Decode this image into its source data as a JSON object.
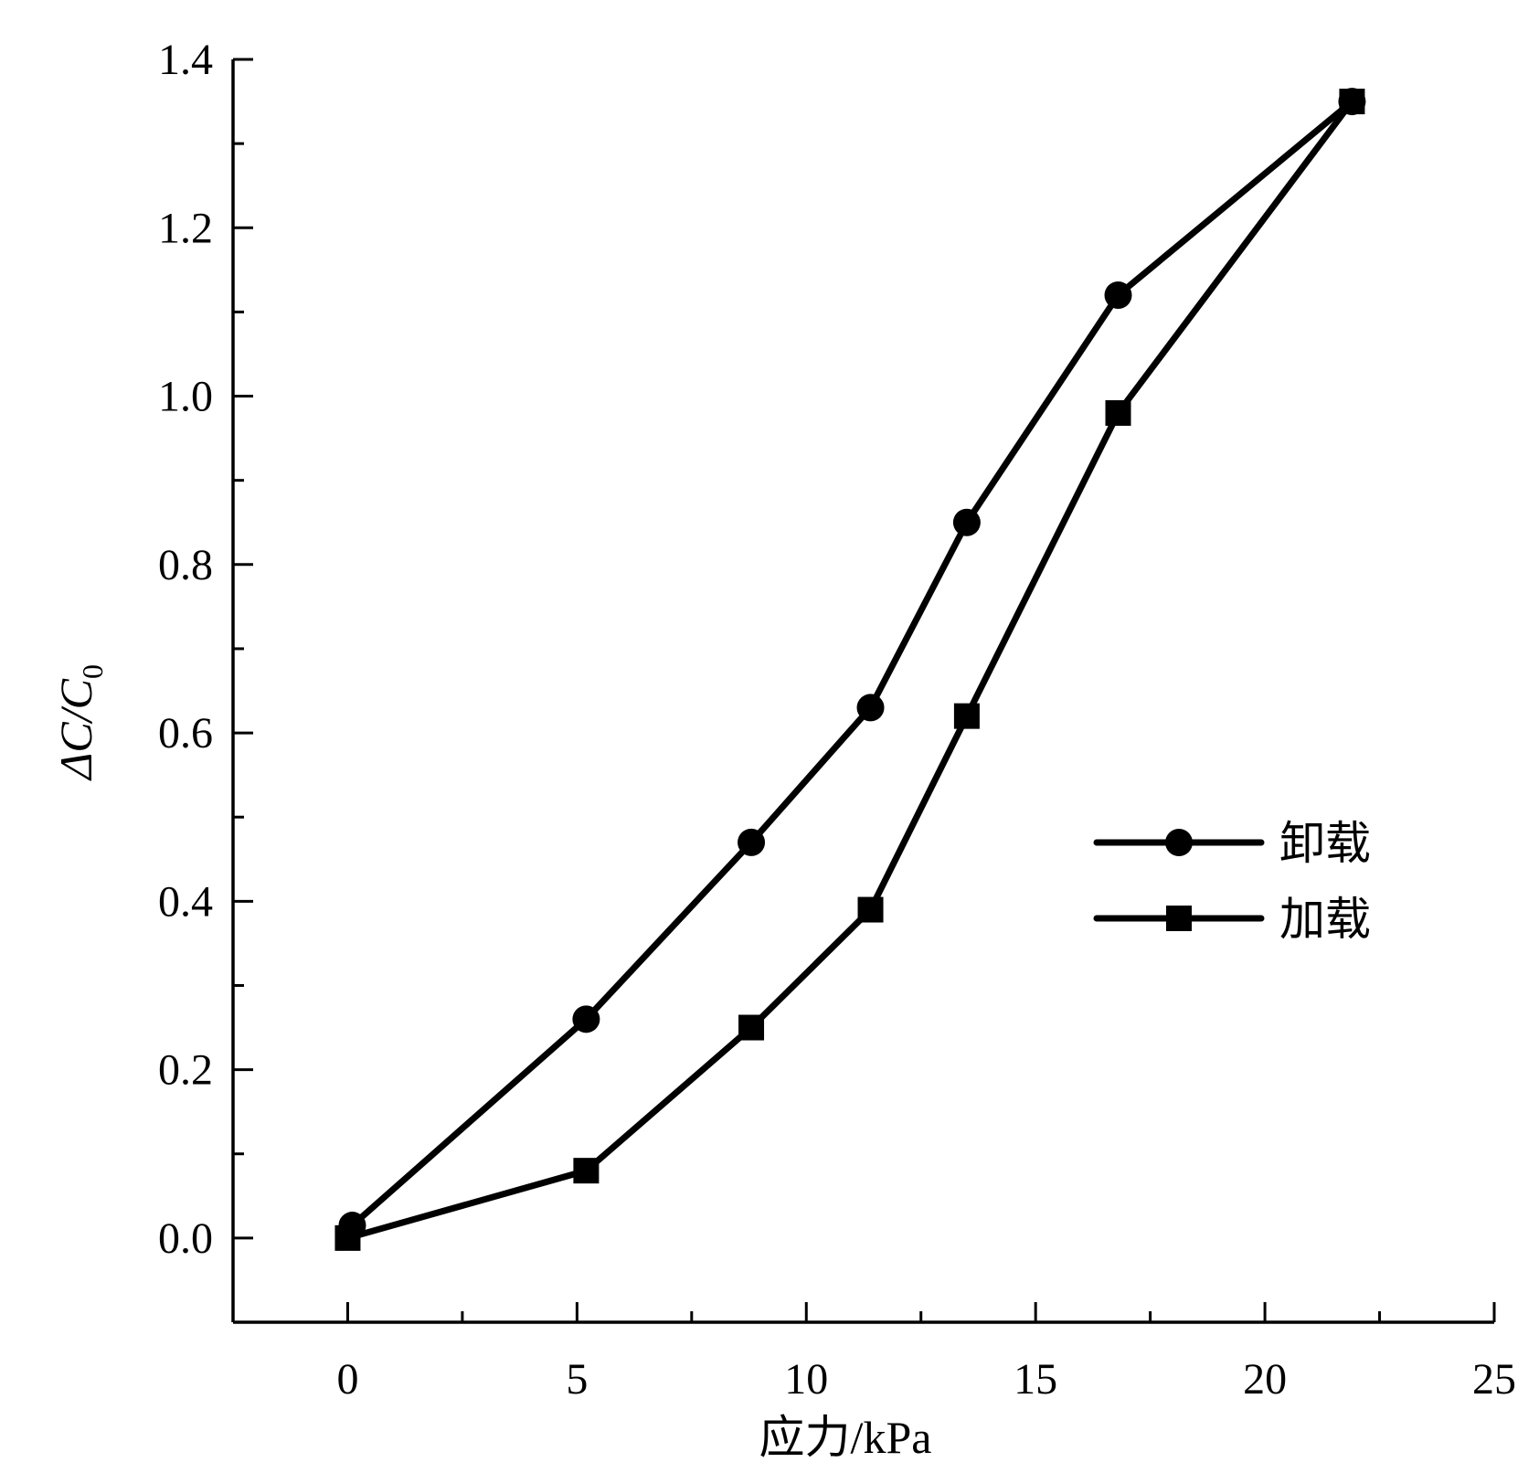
{
  "chart_data": {
    "type": "line",
    "xlabel": "应力/kPa",
    "ylabel_main": "ΔC/C",
    "ylabel_sub": "0",
    "xlim": [
      -2.5,
      25
    ],
    "ylim": [
      -0.1,
      1.4
    ],
    "x_ticks": [
      0,
      5,
      10,
      15,
      20,
      25
    ],
    "x_tick_labels": [
      "0",
      "5",
      "10",
      "15",
      "20",
      "25"
    ],
    "x_minor_ticks": [
      2.5,
      7.5,
      12.5,
      17.5,
      22.5
    ],
    "y_ticks": [
      0.0,
      0.2,
      0.4,
      0.6,
      0.8,
      1.0,
      1.2,
      1.4
    ],
    "y_tick_labels": [
      "0.0",
      "0.2",
      "0.4",
      "0.6",
      "0.8",
      "1.0",
      "1.2",
      "1.4"
    ],
    "y_minor_ticks": [
      -0.1,
      0.1,
      0.3,
      0.5,
      0.7,
      0.9,
      1.1,
      1.3
    ],
    "grid": false,
    "legend_position": "right-middle",
    "series": [
      {
        "name": "卸载",
        "marker": "circle",
        "x": [
          0.1,
          5.2,
          8.8,
          11.4,
          13.5,
          16.8,
          21.9
        ],
        "y": [
          0.015,
          0.26,
          0.47,
          0.63,
          0.85,
          1.12,
          1.35
        ]
      },
      {
        "name": "加载",
        "marker": "square",
        "x": [
          0.0,
          5.2,
          8.8,
          11.4,
          13.5,
          16.8,
          21.9
        ],
        "y": [
          0.0,
          0.08,
          0.25,
          0.39,
          0.62,
          0.98,
          1.35
        ]
      }
    ]
  }
}
